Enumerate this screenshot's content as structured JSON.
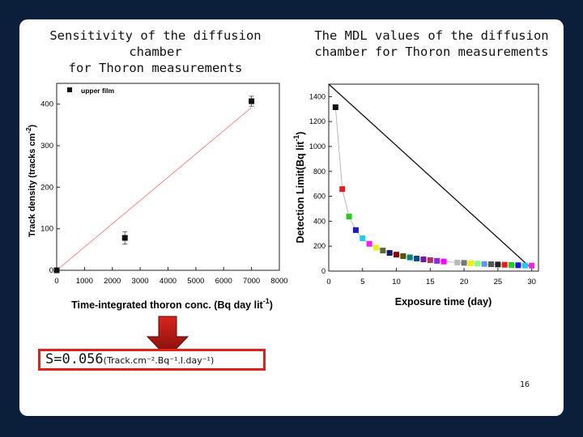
{
  "slide": {
    "left_title": "Sensitivity of the diffusion chamber\nfor Thoron measurements",
    "right_title": "The MDL values of the diffusion\nchamber for Thoron measurements",
    "formula_main": "S=0.056",
    "formula_units": "(Track.cm⁻².Bq⁻¹.l.day⁻¹)",
    "page_number": "16",
    "arrow_color": "#d9241c"
  },
  "chart_data": [
    {
      "type": "scatter",
      "title": "",
      "xlabel": "Time-integrated thoron conc. (Bq day lit",
      "xlabel_sup": "-1",
      "xlabel_end": ")",
      "ylabel": "Track density  (tracks cm",
      "ylabel_sup": "-2",
      "ylabel_end": ")",
      "xlim": [
        0,
        8000
      ],
      "ylim": [
        0,
        450
      ],
      "xticks": [
        0,
        1000,
        2000,
        3000,
        4000,
        5000,
        6000,
        7000,
        8000
      ],
      "yticks": [
        0,
        100,
        200,
        300,
        400
      ],
      "legend": "upper film",
      "legend_position": "top-left",
      "series": [
        {
          "name": "upper film",
          "x": [
            0,
            2450,
            7000
          ],
          "y": [
            0,
            78,
            407
          ],
          "err": [
            0,
            15,
            12
          ]
        }
      ],
      "fit_line": {
        "x": [
          0,
          7000
        ],
        "y": [
          0,
          392
        ],
        "color": "#f08a8a"
      }
    },
    {
      "type": "scatter",
      "title": "",
      "xlabel": "Exposure time (day)",
      "ylabel": "Detection Limit(Bq lit",
      "ylabel_sup": "-1",
      "ylabel_end": ")",
      "xlim": [
        0,
        31
      ],
      "ylim": [
        0,
        1500
      ],
      "xticks": [
        0,
        5,
        10,
        15,
        20,
        25,
        30
      ],
      "yticks": [
        0,
        200,
        400,
        600,
        800,
        1000,
        1200,
        1400
      ],
      "points": {
        "x": [
          1,
          2,
          3,
          4,
          5,
          6,
          7,
          8,
          9,
          10,
          11,
          12,
          13,
          14,
          15,
          16,
          17,
          19,
          20,
          21,
          22,
          23,
          24,
          25,
          26,
          27,
          28,
          29,
          30
        ],
        "y": [
          1315,
          658,
          438,
          329,
          263,
          219,
          188,
          165,
          146,
          132,
          120,
          110,
          101,
          94,
          88,
          82,
          77,
          69,
          66,
          63,
          60,
          57,
          55,
          53,
          51,
          49,
          47,
          45,
          44
        ],
        "colors": [
          "#111111",
          "#e02020",
          "#22cc22",
          "#1a1acc",
          "#22ccee",
          "#ee22ee",
          "#eeee22",
          "#556b2f",
          "#1a1a66",
          "#800000",
          "#555500",
          "#008080",
          "#114488",
          "#6a1a9a",
          "#b03060",
          "#8a2be2",
          "#ff00ff",
          "#bbbbbb",
          "#777777",
          "#eeee00",
          "#88ff88",
          "#6495ed",
          "#555555",
          "#222222",
          "#e02020",
          "#22cc22",
          "#1a1acc",
          "#22ccee",
          "#ee22ee"
        ]
      },
      "diagonal_line": {
        "x": [
          0,
          29.6
        ],
        "y": [
          1500,
          40
        ]
      }
    }
  ]
}
